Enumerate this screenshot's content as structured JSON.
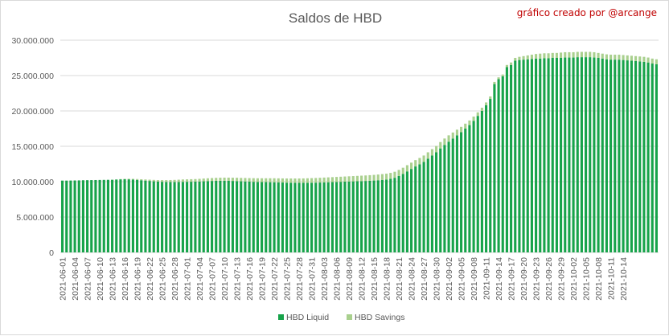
{
  "credit": "gráfico creado por @arcange",
  "chart_data": {
    "type": "bar",
    "stacked": true,
    "title": "Saldos de HBD",
    "xlabel": "",
    "ylabel": "",
    "ylim": [
      0,
      30000000
    ],
    "yticks": [
      0,
      5000000,
      10000000,
      15000000,
      20000000,
      25000000,
      30000000
    ],
    "ytick_labels": [
      "0",
      "5.000.000",
      "10.000.000",
      "15.000.000",
      "20.000.000",
      "25.000.000",
      "30.000.000"
    ],
    "grid": true,
    "legend_position": "bottom",
    "x_start": "2021-06-01",
    "x_end": "2021-10-15",
    "x_tick_labels": [
      "2021-06-01",
      "2021-06-04",
      "2021-06-07",
      "2021-06-10",
      "2021-06-13",
      "2021-06-16",
      "2021-06-19",
      "2021-06-22",
      "2021-06-25",
      "2021-06-28",
      "2021-07-01",
      "2021-07-04",
      "2021-07-07",
      "2021-07-10",
      "2021-07-13",
      "2021-07-16",
      "2021-07-19",
      "2021-07-22",
      "2021-07-25",
      "2021-07-28",
      "2021-07-31",
      "2021-08-03",
      "2021-08-06",
      "2021-08-09",
      "2021-08-12",
      "2021-08-15",
      "2021-08-18",
      "2021-08-21",
      "2021-08-24",
      "2021-08-27",
      "2021-08-30",
      "2021-09-02",
      "2021-09-05",
      "2021-09-08",
      "2021-09-11",
      "2021-09-14",
      "2021-09-17",
      "2021-09-20",
      "2021-09-23",
      "2021-09-26",
      "2021-09-29",
      "2021-10-02",
      "2021-10-05",
      "2021-10-08",
      "2021-10-11",
      "2021-10-14"
    ],
    "series": [
      {
        "name": "HBD Liquid",
        "color": "#17a34a",
        "values": [
          10150000,
          10150000,
          10160000,
          10170000,
          10180000,
          10200000,
          10210000,
          10220000,
          10230000,
          10240000,
          10250000,
          10260000,
          10270000,
          10300000,
          10330000,
          10340000,
          10330000,
          10300000,
          10250000,
          10200000,
          10150000,
          10100000,
          10050000,
          10000000,
          9980000,
          9960000,
          9950000,
          9950000,
          9960000,
          9970000,
          9980000,
          9990000,
          10000000,
          10020000,
          10050000,
          10080000,
          10100000,
          10120000,
          10130000,
          10130000,
          10120000,
          10100000,
          10080000,
          10050000,
          10030000,
          10000000,
          9980000,
          9960000,
          9950000,
          9940000,
          9930000,
          9920000,
          9900000,
          9880000,
          9860000,
          9850000,
          9840000,
          9830000,
          9830000,
          9840000,
          9850000,
          9860000,
          9880000,
          9900000,
          9920000,
          9940000,
          9960000,
          9980000,
          10000000,
          10020000,
          10040000,
          10060000,
          10080000,
          10100000,
          10130000,
          10160000,
          10200000,
          10250000,
          10300000,
          10400000,
          10550000,
          10800000,
          11100000,
          11450000,
          11800000,
          12150000,
          12450000,
          12800000,
          13250000,
          13700000,
          14150000,
          14700000,
          15200000,
          15650000,
          16100000,
          16550000,
          17000000,
          17500000,
          18000000,
          18600000,
          19300000,
          20000000,
          20800000,
          21700000,
          23800000,
          24500000,
          24900000,
          26200000,
          26500000,
          27100000,
          27200000,
          27250000,
          27300000,
          27350000,
          27400000,
          27400000,
          27450000,
          27450000,
          27500000,
          27500000,
          27500000,
          27550000,
          27550000,
          27550000,
          27600000,
          27600000,
          27600000,
          27600000,
          27550000,
          27500000,
          27400000,
          27300000,
          27250000,
          27250000,
          27250000,
          27200000,
          27150000,
          27100000,
          27050000,
          27000000,
          26950000,
          26850000,
          26700000,
          26600000
        ]
      },
      {
        "name": "HBD Savings",
        "color": "#a9d08e",
        "values": [
          0,
          0,
          0,
          0,
          0,
          0,
          0,
          0,
          0,
          0,
          0,
          0,
          10000,
          20000,
          40000,
          60000,
          80000,
          100000,
          120000,
          140000,
          160000,
          180000,
          200000,
          220000,
          240000,
          260000,
          280000,
          300000,
          320000,
          340000,
          350000,
          360000,
          370000,
          380000,
          390000,
          400000,
          410000,
          420000,
          430000,
          440000,
          450000,
          460000,
          470000,
          480000,
          490000,
          500000,
          510000,
          520000,
          530000,
          540000,
          550000,
          560000,
          570000,
          580000,
          590000,
          600000,
          610000,
          620000,
          630000,
          640000,
          650000,
          660000,
          670000,
          680000,
          690000,
          700000,
          710000,
          720000,
          730000,
          740000,
          750000,
          760000,
          770000,
          780000,
          790000,
          800000,
          810000,
          820000,
          830000,
          840000,
          850000,
          860000,
          870000,
          880000,
          890000,
          900000,
          900000,
          900000,
          900000,
          900000,
          900000,
          900000,
          900000,
          900000,
          850000,
          800000,
          750000,
          700000,
          650000,
          600000,
          500000,
          450000,
          400000,
          350000,
          300000,
          250000,
          250000,
          300000,
          350000,
          400000,
          450000,
          500000,
          550000,
          600000,
          650000,
          700000,
          700000,
          700000,
          700000,
          700000,
          750000,
          750000,
          750000,
          750000,
          750000,
          750000,
          750000,
          750000,
          750000,
          700000,
          700000,
          700000,
          700000,
          700000,
          700000,
          700000,
          700000,
          700000,
          700000,
          700000,
          700000,
          700000,
          700000,
          700000
        ]
      }
    ]
  }
}
